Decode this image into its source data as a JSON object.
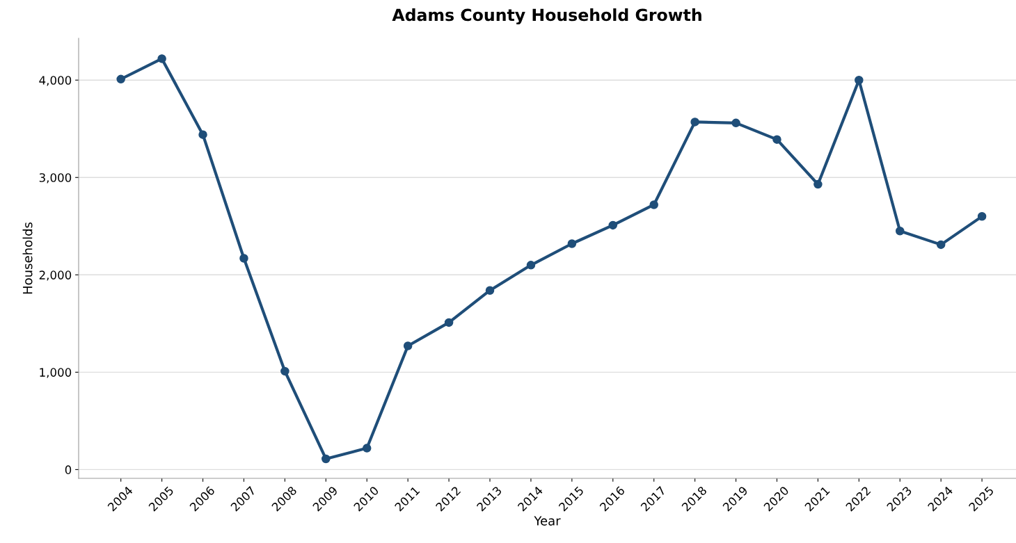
{
  "chart_data": {
    "type": "line",
    "title": "Adams County Household Growth",
    "xlabel": "Year",
    "ylabel": "Households",
    "categories": [
      "2004",
      "2005",
      "2006",
      "2007",
      "2008",
      "2009",
      "2010",
      "2011",
      "2012",
      "2013",
      "2014",
      "2015",
      "2016",
      "2017",
      "2018",
      "2019",
      "2020",
      "2021",
      "2022",
      "2023",
      "2024",
      "2025"
    ],
    "series": [
      {
        "color": "#1f4e79",
        "values": [
          4010,
          4220,
          3440,
          2170,
          1010,
          110,
          220,
          1270,
          1510,
          1840,
          2100,
          2320,
          2510,
          2720,
          3570,
          3560,
          3390,
          2930,
          4000,
          2450,
          2310,
          2600
        ]
      }
    ],
    "ylim": [
      -90,
      4430
    ],
    "yticks": [
      {
        "value": 0,
        "label": "0"
      },
      {
        "value": 1000,
        "label": "1,000"
      },
      {
        "value": 2000,
        "label": "2,000"
      },
      {
        "value": 3000,
        "label": "3,000"
      },
      {
        "value": 4000,
        "label": "4,000"
      }
    ],
    "grid": "y",
    "marker": "circle",
    "line_style": "solid"
  }
}
